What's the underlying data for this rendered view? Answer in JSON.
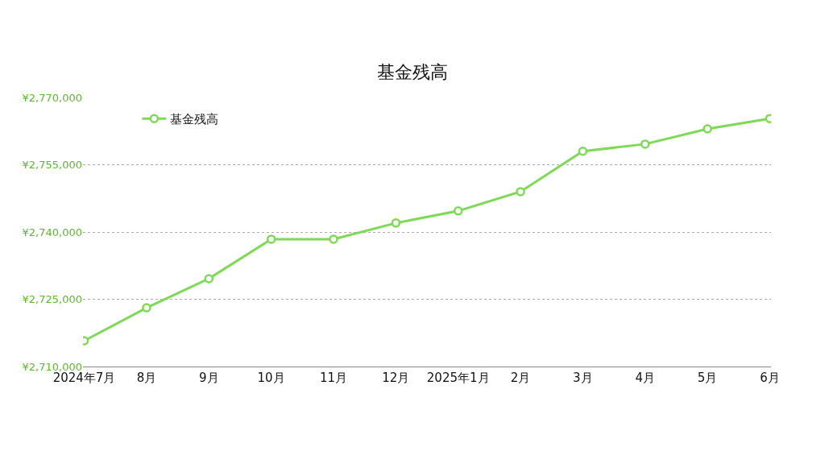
{
  "chart_data": {
    "type": "line",
    "title": "基金残高",
    "categories": [
      "2024年7月",
      "8月",
      "9月",
      "10月",
      "11月",
      "12月",
      "2025年1月",
      "2月",
      "3月",
      "4月",
      "5月",
      "6月"
    ],
    "series": [
      {
        "name": "基金残高",
        "color": "#7ed957",
        "values": [
          2715750,
          2723100,
          2729600,
          2738400,
          2738400,
          2742000,
          2744700,
          2749000,
          2758000,
          2759600,
          2763000,
          2765300
        ]
      }
    ],
    "ylim": [
      2710000,
      2770000
    ],
    "yticks": [
      {
        "value": 2710000,
        "label": "¥2,710,000"
      },
      {
        "value": 2725000,
        "label": "¥2,725,000"
      },
      {
        "value": 2740000,
        "label": "¥2,740,000"
      },
      {
        "value": 2755000,
        "label": "¥2,755,000"
      },
      {
        "value": 2770000,
        "label": "¥2,770,000"
      }
    ],
    "grid": "y",
    "legend": "top left",
    "marker": "circle",
    "line_style": "solid"
  }
}
